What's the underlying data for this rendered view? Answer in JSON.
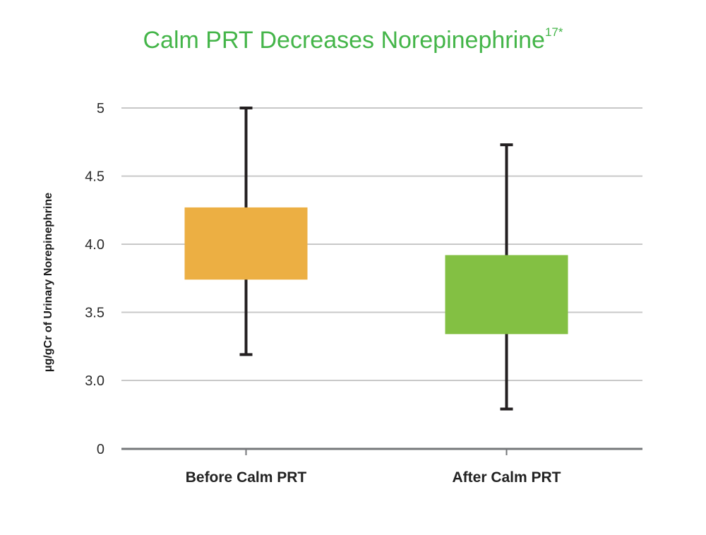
{
  "chart_data": {
    "type": "box",
    "title": "Calm PRT Decreases Norepinephrine",
    "title_superscript": "17*",
    "xlabel": "",
    "ylabel": "μg/gCr of Urinary Norepinephrine",
    "y_ticks": [
      {
        "value": 0,
        "label": "0"
      },
      {
        "value": 3.0,
        "label": "3.0"
      },
      {
        "value": 3.5,
        "label": "3.5"
      },
      {
        "value": 4.0,
        "label": "4.0"
      },
      {
        "value": 4.5,
        "label": "4.5"
      },
      {
        "value": 5,
        "label": "5"
      }
    ],
    "axis_break": "between 0 and 3.0",
    "grid": true,
    "categories": [
      "Before Calm PRT",
      "After Calm PRT"
    ],
    "boxes": [
      {
        "category": "Before Calm PRT",
        "min": 3.19,
        "q1": 3.74,
        "q3": 4.27,
        "max": 5.0,
        "color": "#ecaf43"
      },
      {
        "category": "After Calm PRT",
        "min": 2.79,
        "q1": 3.34,
        "q3": 3.92,
        "max": 4.73,
        "color": "#83c043"
      }
    ]
  },
  "colors": {
    "title": "#44b549",
    "grid": "#c8c8c8",
    "axis": "#75777a",
    "whisker": "#231f20"
  }
}
